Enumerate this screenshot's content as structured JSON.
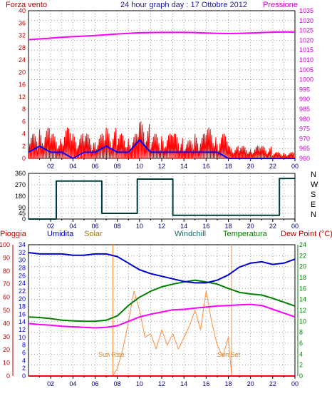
{
  "header": {
    "left": "Forza vento",
    "title": "24 hour graph day : 17 Ottobre 2012",
    "right": "Pressione"
  },
  "colors": {
    "background": "#ffffff",
    "grid_dot": "#8a8a8a",
    "frame": "#000000",
    "axis_left_top": "#c00000",
    "axis_right_top": "#cc00cc",
    "axis_left_bottom": "#c00000",
    "axis_mid_bottom": "#0000cc",
    "axis_right_bottom": "#008000",
    "gust": "#ff0000",
    "wind": "#0000ff",
    "pressure": "#ff00ff",
    "direction": "#003a3a",
    "humidity": "#0000cc",
    "temperature": "#008000",
    "dewpoint": "#ff00ff",
    "solar": "#ff8c3c",
    "rain": "#ff0000",
    "sun_label": "#cc8833"
  },
  "chart_data": [
    {
      "type": "line",
      "title": "24 hour graph day : 17 Ottobre 2012",
      "x_ticks": [
        "02",
        "04",
        "06",
        "08",
        "10",
        "12",
        "14",
        "16",
        "18",
        "20",
        "22",
        "00"
      ],
      "left_axis": {
        "label": "Forza vento",
        "range": [
          0,
          40
        ],
        "ticks": [
          "0",
          "2",
          "4",
          "6",
          "8",
          "12",
          "16",
          "20",
          "24",
          "28",
          "32",
          "36",
          "40"
        ]
      },
      "right_axis": {
        "label": "Pressione",
        "range": [
          960,
          1035
        ],
        "ticks": [
          "960",
          "965",
          "970",
          "975",
          "980",
          "985",
          "990",
          "995",
          "1000",
          "1005",
          "1010",
          "1015",
          "1020",
          "1025",
          "1030",
          "1035"
        ]
      },
      "series": [
        {
          "name": "Pressione",
          "axis": "right",
          "x": [
            0,
            1,
            2,
            3,
            4,
            5,
            6,
            7,
            8,
            9,
            10,
            11,
            12,
            13,
            14,
            15,
            16,
            17,
            18,
            19,
            20,
            21,
            22,
            23,
            24
          ],
          "y": [
            1020.3,
            1020.7,
            1021.1,
            1021.5,
            1021.8,
            1022.1,
            1022.4,
            1022.8,
            1023.2,
            1023.5,
            1023.8,
            1023.9,
            1024.0,
            1024.0,
            1024.0,
            1023.9,
            1023.7,
            1023.5,
            1023.4,
            1023.5,
            1023.7,
            1023.9,
            1024.1,
            1024.2,
            1024.1
          ]
        },
        {
          "name": "Gust",
          "axis": "left",
          "x": [
            0,
            1,
            2,
            3,
            4,
            5,
            6,
            7,
            8,
            9,
            10,
            11,
            12,
            13,
            14,
            15,
            16,
            17,
            18,
            19,
            20,
            21,
            22,
            23,
            24
          ],
          "y": [
            4,
            5,
            4,
            5,
            4,
            4,
            4,
            5,
            4,
            4,
            6,
            4,
            4,
            4,
            3,
            4,
            5,
            4,
            2,
            2,
            2,
            2,
            1,
            1,
            1
          ]
        },
        {
          "name": "Wind",
          "axis": "left",
          "x": [
            0,
            1,
            2,
            3,
            4,
            5,
            6,
            7,
            8,
            9,
            10,
            11,
            12,
            13,
            14,
            15,
            16,
            17,
            18,
            19,
            20,
            21,
            22,
            23,
            24
          ],
          "y": [
            1,
            2,
            1,
            1,
            0,
            1,
            1,
            2,
            1,
            1,
            3,
            1,
            1,
            1,
            1,
            1,
            1,
            1,
            0,
            0,
            0,
            0,
            0,
            0,
            0
          ]
        }
      ]
    },
    {
      "type": "line",
      "x_ticks": [
        "02",
        "04",
        "06",
        "08",
        "10",
        "12",
        "14",
        "16",
        "18",
        "20",
        "22",
        "00"
      ],
      "left_axis": {
        "range": [
          0,
          360
        ],
        "ticks": [
          "0",
          "45",
          "90",
          "180",
          "270",
          "360"
        ]
      },
      "right_labels": [
        "N",
        "W",
        "S",
        "E",
        "N"
      ],
      "series": [
        {
          "name": "Direzione",
          "x": [
            0,
            2.5,
            2.5,
            6.6,
            6.6,
            9.8,
            9.8,
            13.0,
            13.0,
            22.6,
            22.6,
            24
          ],
          "y": [
            0,
            0,
            300,
            300,
            45,
            45,
            315,
            315,
            30,
            30,
            320,
            320
          ]
        }
      ]
    },
    {
      "type": "line",
      "x_ticks": [
        "02",
        "04",
        "06",
        "08",
        "10",
        "12",
        "14",
        "16",
        "18",
        "20",
        "22",
        "00"
      ],
      "legend": [
        "Pioggia",
        "Umidita",
        "Solar",
        "Windchill",
        "Temperatura",
        "Dew Point (°C)"
      ],
      "axis_left": {
        "label": "Pioggia",
        "range": [
          0,
          100
        ],
        "ticks": [
          "0",
          "10",
          "20",
          "30",
          "40",
          "50",
          "60",
          "70",
          "80",
          "90",
          "100"
        ]
      },
      "axis_mid": {
        "label": "Umidita",
        "range": [
          0,
          34
        ],
        "ticks": [
          "0",
          "2",
          "4",
          "6",
          "8",
          "10",
          "12",
          "14",
          "16",
          "18",
          "20",
          "22",
          "24",
          "26",
          "28",
          "30",
          "32",
          "34"
        ]
      },
      "axis_right": {
        "label": "Temperatura",
        "range": [
          0,
          24
        ],
        "ticks": [
          "0",
          "2",
          "4",
          "6",
          "8",
          "10",
          "12",
          "14",
          "16",
          "18",
          "20",
          "22",
          "24"
        ]
      },
      "annotations": [
        "Sun Rise",
        "Sun Set"
      ],
      "sun_rise": 7.6,
      "sun_set": 18.3,
      "series": [
        {
          "name": "Umidita",
          "axis": "left",
          "x": [
            0,
            1,
            2,
            3,
            4,
            5,
            6,
            7,
            8,
            9,
            10,
            11,
            12,
            13,
            14,
            15,
            16,
            17,
            18,
            19,
            20,
            21,
            22,
            23,
            24
          ],
          "y": [
            94,
            93,
            93,
            93,
            92,
            92,
            93,
            93,
            91,
            86,
            81,
            78,
            76,
            74,
            72,
            71,
            71,
            73,
            77,
            83,
            86,
            87,
            85,
            86,
            89
          ]
        },
        {
          "name": "Temperatura",
          "axis": "right",
          "x": [
            0,
            1,
            2,
            3,
            4,
            5,
            6,
            7,
            8,
            9,
            10,
            11,
            12,
            13,
            14,
            15,
            16,
            17,
            18,
            19,
            20,
            21,
            22,
            23,
            24
          ],
          "y": [
            10.8,
            10.7,
            10.5,
            10.2,
            10.1,
            10.0,
            10.0,
            10.2,
            11.0,
            12.9,
            14.4,
            15.5,
            16.3,
            16.8,
            17.2,
            17.5,
            17.2,
            16.8,
            16.0,
            15.3,
            15.0,
            14.8,
            14.2,
            13.5,
            12.8
          ]
        },
        {
          "name": "Dew Point (°C)",
          "axis": "right",
          "x": [
            0,
            1,
            2,
            3,
            4,
            5,
            6,
            7,
            8,
            9,
            10,
            11,
            12,
            13,
            14,
            15,
            16,
            17,
            18,
            19,
            20,
            21,
            22,
            23,
            24
          ],
          "y": [
            9.6,
            9.4,
            9.3,
            9.1,
            9.0,
            8.9,
            8.8,
            8.9,
            9.2,
            10.0,
            10.8,
            11.3,
            11.7,
            12.1,
            12.2,
            12.4,
            12.6,
            12.8,
            12.9,
            13.0,
            13.1,
            12.9,
            12.2,
            11.5,
            10.8
          ]
        },
        {
          "name": "Solar",
          "axis": "mid",
          "x": [
            7.6,
            8.0,
            8.5,
            9.0,
            9.5,
            10.0,
            10.5,
            11.0,
            11.5,
            12.0,
            12.5,
            13.0,
            13.5,
            14.0,
            14.5,
            15.0,
            15.5,
            16.0,
            16.5,
            17.0,
            17.5,
            18.0,
            18.3
          ],
          "y": [
            0,
            2,
            7,
            14,
            22,
            17,
            10,
            11,
            7,
            12,
            8,
            11,
            7,
            10,
            13,
            17,
            12,
            22,
            14,
            8,
            5,
            10,
            0
          ]
        },
        {
          "name": "Pioggia",
          "axis": "left",
          "x": [
            0,
            24
          ],
          "y": [
            0,
            0
          ]
        }
      ]
    }
  ]
}
